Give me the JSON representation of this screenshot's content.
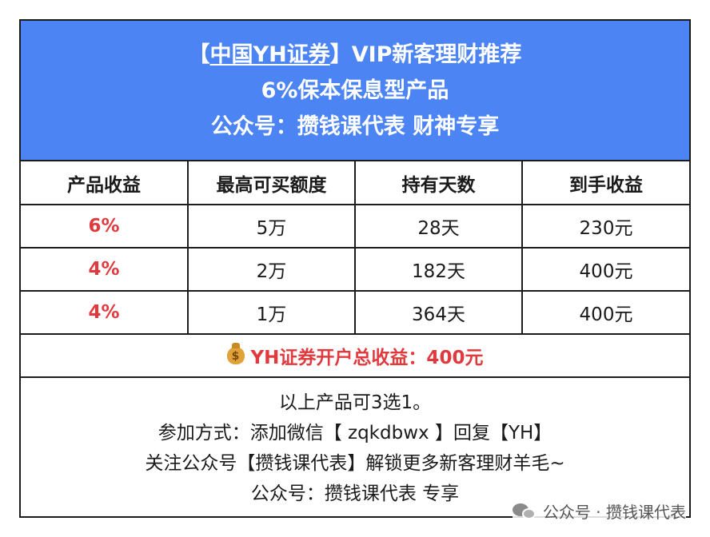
{
  "header": {
    "bracket_open": "【",
    "brand": "中国YH证券",
    "bracket_close": "】",
    "title_rest": "VIP新客理财推荐",
    "line2": "6%保本保息型产品",
    "line3": "公众号：攒钱课代表 财神专享"
  },
  "table": {
    "columns": [
      "产品收益",
      "最高可买额度",
      "持有天数",
      "到手收益"
    ],
    "rows": [
      {
        "rate": "6%",
        "limit": "5万",
        "days": "28天",
        "income": "230元"
      },
      {
        "rate": "4%",
        "limit": "2万",
        "days": "182天",
        "income": "400元"
      },
      {
        "rate": "4%",
        "limit": "1万",
        "days": "364天",
        "income": "400元"
      }
    ]
  },
  "summary": {
    "icon": "money-bag-icon",
    "icon_glyph": "$",
    "text": "YH证券开户总收益：400元"
  },
  "footer": {
    "lines": [
      "以上产品可3选1。",
      "参加方式：添加微信【 zqkdbwx 】回复【YH】",
      "关注公众号【攒钱课代表】解锁更多新客理财羊毛~",
      "公众号：攒钱课代表 专享"
    ]
  },
  "watermark": {
    "icon": "wechat-icon",
    "text": "公众号 · 攒钱课代表"
  },
  "colors": {
    "header_bg": "#4c84f4",
    "rate_red": "#e0393e",
    "border": "#1c1c1c"
  }
}
